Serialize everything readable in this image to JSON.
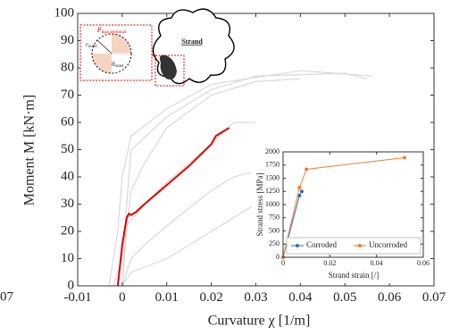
{
  "chart_data": [
    {
      "type": "line",
      "x_label": "Curvature χ [1/m]",
      "y_label": "Moment M [kN·m]",
      "xlim": [
        -0.01,
        0.07
      ],
      "xticks": [
        -0.01,
        0,
        0.01,
        0.02,
        0.03,
        0.04,
        0.05,
        0.06,
        0.07
      ],
      "ylim": [
        0,
        100
      ],
      "yticks": [
        0,
        10,
        20,
        30,
        40,
        50,
        60,
        70,
        80,
        90,
        100
      ],
      "edge_label": "07",
      "annotations": {
        "p_label": "P",
        "p_sub": "max,sectional",
        "r_label": "r",
        "r_sub": "outer",
        "theta_label": "θ",
        "theta_sub": "outer",
        "strand": "Strand"
      },
      "series": [
        {
          "color": "#d9d9d9",
          "x": [
            0,
            0.001,
            0.002,
            0.01,
            0.02,
            0.03,
            0.05,
            0.055
          ],
          "values": [
            0,
            30,
            50,
            62,
            72,
            77,
            78,
            76
          ]
        },
        {
          "color": "#d9d9d9",
          "x": [
            0,
            0.001,
            0.002,
            0.005,
            0.01,
            0.02,
            0.03,
            0.04
          ],
          "values": [
            0,
            20,
            35,
            45,
            58,
            70,
            75,
            76
          ]
        },
        {
          "color": "#d9d9d9",
          "x": [
            -0.002,
            0,
            0.001,
            0.005,
            0.01,
            0.02,
            0.025,
            0.03
          ],
          "values": [
            0,
            10,
            22,
            30,
            38,
            52,
            60,
            60
          ]
        },
        {
          "color": "#d9d9d9",
          "x": [
            0,
            0.002,
            0.005,
            0.01,
            0.02,
            0.025,
            0.03
          ],
          "values": [
            0,
            10,
            15,
            22,
            35,
            40,
            42
          ]
        },
        {
          "color": "#d9d9d9",
          "x": [
            -0.003,
            -0.001,
            0,
            0.002,
            0.01,
            0.02,
            0.04,
            0.056
          ],
          "values": [
            0,
            20,
            40,
            55,
            65,
            74,
            79,
            77
          ]
        },
        {
          "color": "#d9d9d9",
          "x": [
            0,
            0.002,
            0.01,
            0.02,
            0.03
          ],
          "values": [
            0,
            5,
            10,
            20,
            30
          ]
        },
        {
          "color": "#e00000",
          "x": [
            -0.001,
            0,
            0.001,
            0.0015,
            0.002,
            0.003,
            0.005,
            0.01,
            0.015,
            0.02,
            0.021,
            0.024
          ],
          "values": [
            0,
            15,
            25,
            26.5,
            26,
            27,
            30,
            37,
            44,
            52,
            55,
            58
          ]
        }
      ]
    },
    {
      "type": "line",
      "x_label": "Strand strain [/]",
      "y_label": "Strand stress [MPa]",
      "xlim": [
        0,
        0.06
      ],
      "xticks": [
        0,
        0.02,
        0.04,
        0.06
      ],
      "ylim": [
        0,
        2000
      ],
      "yticks": [
        0,
        250,
        500,
        750,
        1000,
        1250,
        1500,
        1750,
        2000
      ],
      "legend": "bottom-right",
      "series": [
        {
          "name": "Corroded",
          "color": "#2e6fc0",
          "x": [
            0,
            0.007,
            0.008
          ],
          "values": [
            0,
            1170,
            1250
          ]
        },
        {
          "name": "Uncorroded",
          "color": "#ed7d31",
          "x": [
            0,
            0.007,
            0.01,
            0.052
          ],
          "values": [
            0,
            1320,
            1670,
            1890
          ]
        }
      ]
    }
  ]
}
